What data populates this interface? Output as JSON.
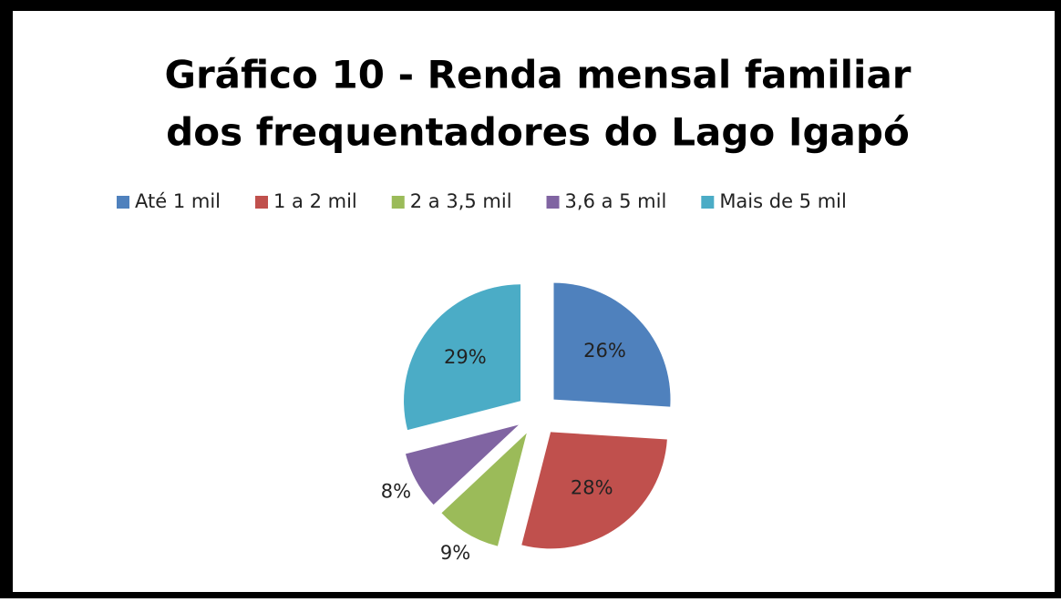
{
  "chart_data": {
    "type": "pie",
    "title": [
      "Gráfico 10 - Renda mensal familiar",
      "dos frequentadores do Lago Igapó"
    ],
    "categories": [
      "Até 1 mil",
      "1 a 2 mil",
      "2 a 3,5 mil",
      "3,6 a 5 mil",
      "Mais de 5 mil"
    ],
    "values": [
      26,
      28,
      9,
      8,
      29
    ],
    "value_labels": [
      "26%",
      "28%",
      "9%",
      "8%",
      "29%"
    ],
    "colors": [
      "#4f81bd",
      "#c0504d",
      "#9bbb59",
      "#8064a2",
      "#4bacc6"
    ],
    "legend": "top",
    "exploded": true
  }
}
